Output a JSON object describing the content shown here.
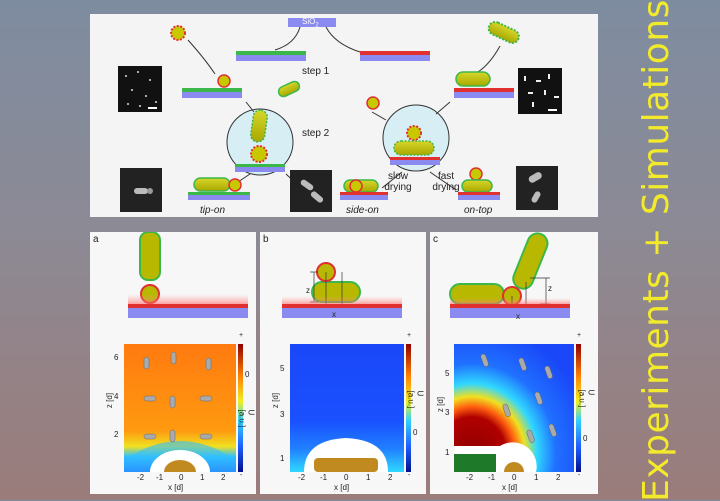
{
  "side_title": "Experiments + Simulations",
  "top": {
    "substrate_label": "SiO",
    "substrate_sub": "2",
    "step1": "step 1",
    "step2": "step 2",
    "slow_drying": "slow\ndrying",
    "slow_1": "slow",
    "slow_2": "drying",
    "fast_1": "fast",
    "fast_2": "drying",
    "tip_on": "tip-on",
    "side_on": "side-on",
    "on_top": "on-top"
  },
  "panels": [
    {
      "letter": "a",
      "z_ticks": [
        "2",
        "4",
        "6"
      ],
      "x_ticks": [
        "-2",
        "-1",
        "0",
        "1",
        "2"
      ]
    },
    {
      "letter": "b",
      "z_ticks": [
        "1",
        "3",
        "5"
      ],
      "x_ticks": [
        "-2",
        "-1",
        "0",
        "1",
        "2"
      ],
      "z_label": "z",
      "x_label": "x"
    },
    {
      "letter": "c",
      "z_ticks": [
        "1",
        "3",
        "5"
      ],
      "x_ticks": [
        "-2",
        "-1",
        "0",
        "1",
        "2"
      ],
      "z_label": "z",
      "x_label": "x"
    }
  ],
  "axes": {
    "xlabel": "x [d]",
    "zlabel": "z [d]",
    "ulabel": "U [a.u.]",
    "cb_plus": "+",
    "cb_zero": "0",
    "cb_minus": "-"
  },
  "colors": {
    "rod": "#b8b800",
    "rod_edge": "#3cb84a",
    "sphere_edge": "#e03030",
    "substrate": "#8a8af0",
    "accent": "#f2ea2a"
  }
}
